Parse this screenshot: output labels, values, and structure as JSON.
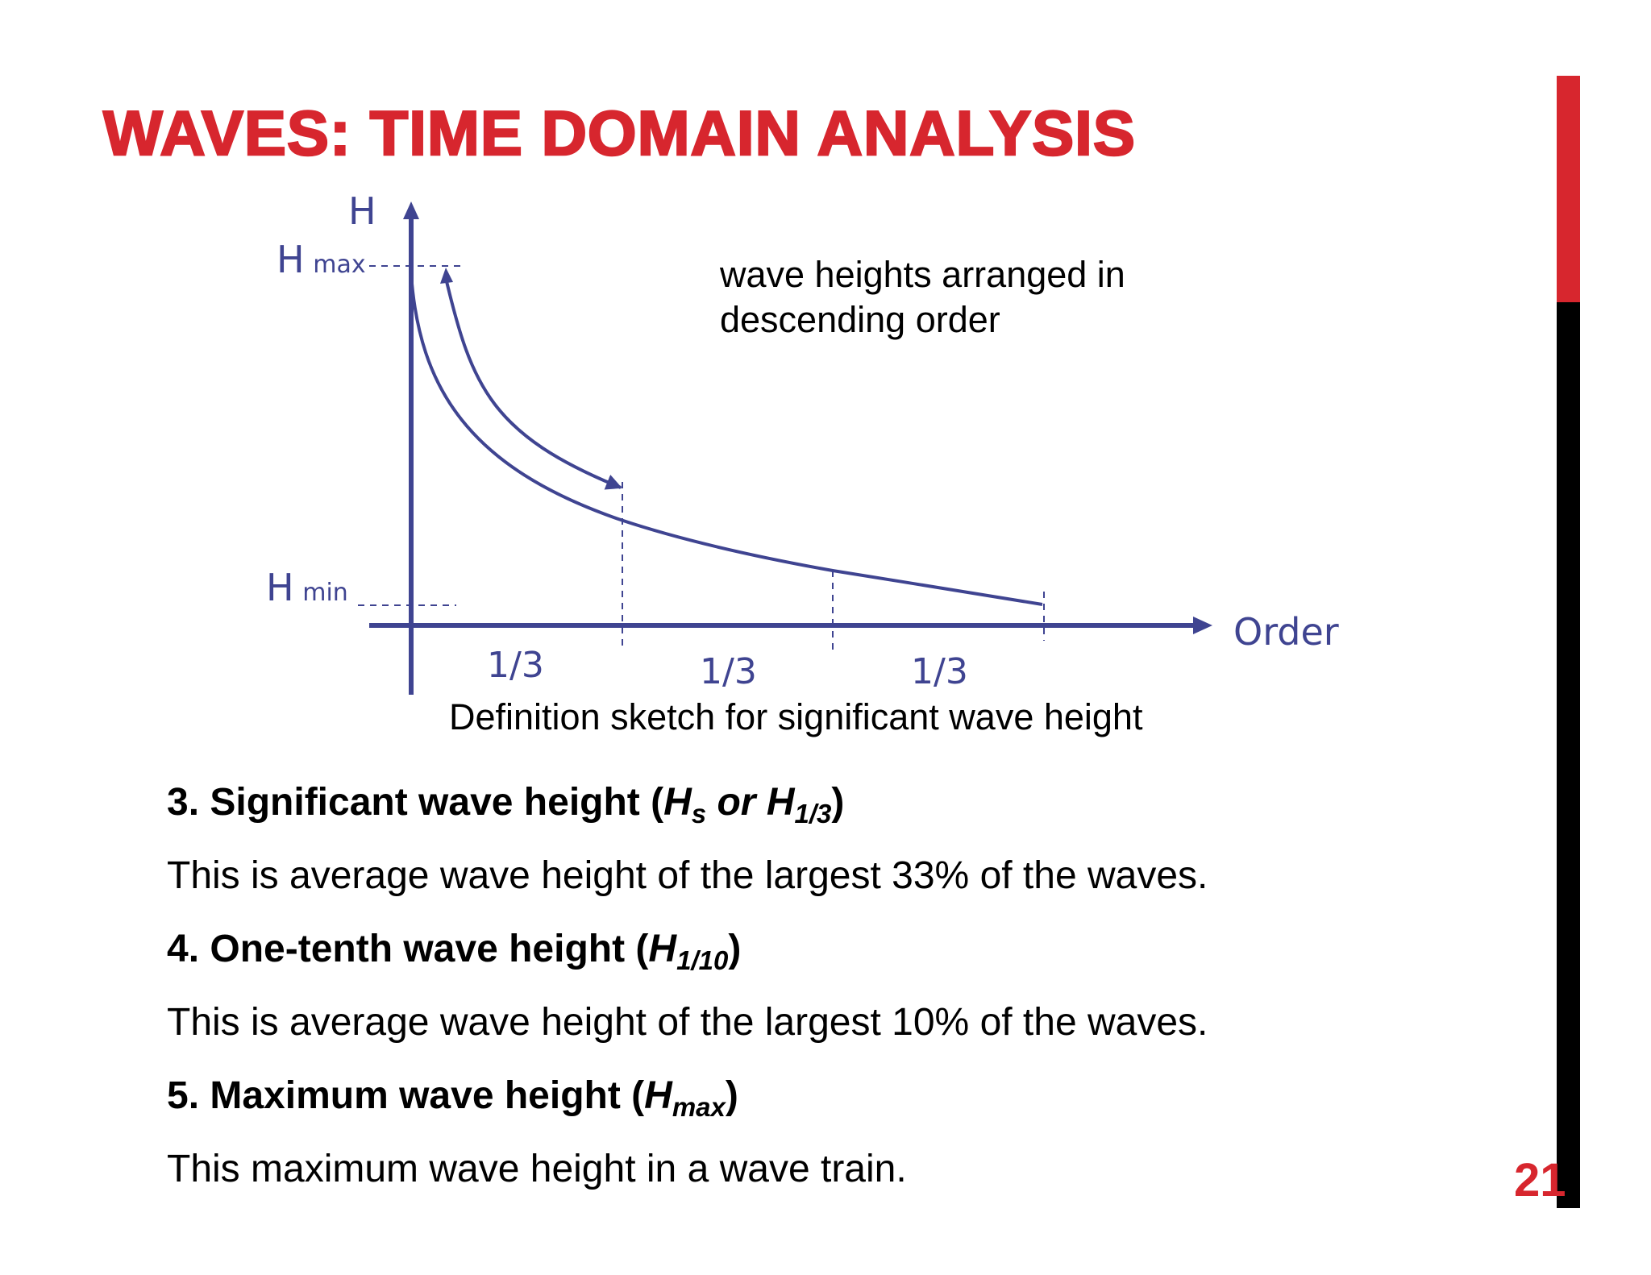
{
  "slide": {
    "title": "WAVES: TIME DOMAIN ANALYSIS",
    "page_number": "21",
    "accent_color": "#d7262e"
  },
  "diagram": {
    "y_axis_label": "H",
    "x_axis_label": "Order",
    "h_max_label": "H",
    "h_max_sub": "max",
    "h_min_label": "H",
    "h_min_sub": "min",
    "segments": [
      "1/3",
      "1/3",
      "1/3"
    ],
    "annotation_line1": "wave heights arranged in",
    "annotation_line2": "descending order",
    "caption": "Definition sketch for significant wave height",
    "line_color": "#3f4491"
  },
  "items": [
    {
      "number_title": "3. Significant wave height (",
      "sym1": "H",
      "sub1": "s",
      "mid": " or ",
      "sym2": "H",
      "sub2": "1/3",
      "close": ")",
      "description": "This is average wave height of the largest 33% of the waves."
    },
    {
      "number_title": "4. One-tenth wave height (",
      "sym1": "H",
      "sub1": "1/10",
      "close": ")",
      "description": "This is average wave height of the largest 10% of the waves."
    },
    {
      "number_title": "5. Maximum wave height (",
      "sym1": "H",
      "sub1": "max",
      "close": ")",
      "description": "This maximum wave height in a wave train."
    }
  ]
}
